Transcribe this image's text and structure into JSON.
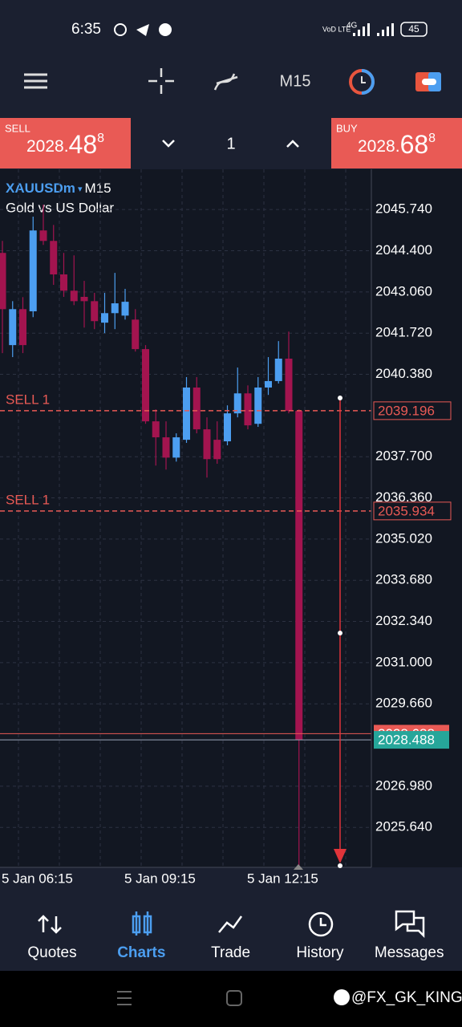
{
  "status_bar": {
    "time": "6:35",
    "network": "VoD LTE",
    "signal": "4G",
    "battery": "45"
  },
  "toolbar": {
    "timeframe": "M15"
  },
  "order_panel": {
    "sell_label": "SELL",
    "sell_price": {
      "main": "2028.",
      "big": "48",
      "sup": "8"
    },
    "volume": "1",
    "buy_label": "BUY",
    "buy_price": {
      "main": "2028.",
      "big": "68",
      "sup": "8"
    }
  },
  "chart_data": {
    "type": "candlestick",
    "symbol": "XAUUSDm",
    "timeframe": "M15",
    "description": "Gold vs US Dollar",
    "up_color": "#4c9ef0",
    "down_color": "#a3144f",
    "categories": [
      "5 Jan 06:15",
      null,
      null,
      null,
      null,
      null,
      null,
      null,
      null,
      null,
      null,
      null,
      "5 Jan 09:15",
      null,
      null,
      null,
      null,
      null,
      null,
      null,
      null,
      null,
      null,
      null,
      "5 Jan 12:15",
      null,
      null,
      null,
      null,
      null
    ],
    "open": [
      2044.33,
      2041.33,
      2042.5,
      2042.43,
      2045.06,
      2044.72,
      2043.63,
      2043.1,
      2042.9,
      2042.76,
      2042.06,
      2042.37,
      2042.29,
      2042.16,
      2041.2,
      2038.85,
      2038.33,
      2037.67,
      2038.25,
      2039.95,
      2038.59,
      2038.25,
      2038.2,
      2039.11,
      2039.76,
      2038.77,
      2039.95,
      2040.16,
      2040.89,
      2039.19
    ],
    "high": [
      2044.72,
      2042.76,
      2042.89,
      2045.51,
      2045.9,
      2045.24,
      2044.33,
      2044.25,
      2043.42,
      2043.03,
      2043.03,
      2043.68,
      2043.16,
      2042.5,
      2041.33,
      2039.24,
      2038.85,
      2038.46,
      2040.29,
      2040.29,
      2038.98,
      2038.85,
      2039.37,
      2040.6,
      2040.02,
      2040.29,
      2040.94,
      2041.46,
      2041.77,
      2039.24
    ],
    "low": [
      2041.07,
      2040.94,
      2041.07,
      2042.24,
      2044.59,
      2043.29,
      2042.9,
      2042.63,
      2041.9,
      2041.85,
      2041.72,
      2041.85,
      2042.16,
      2041.12,
      2038.77,
      2037.41,
      2037.28,
      2037.54,
      2038.15,
      2038.46,
      2037.02,
      2037.47,
      2038.07,
      2038.98,
      2038.59,
      2038.67,
      2039.71,
      2040.08,
      2039.11,
      2024.36
    ],
    "close": [
      2042.5,
      2042.5,
      2041.33,
      2045.06,
      2044.72,
      2043.63,
      2043.1,
      2042.76,
      2042.76,
      2042.11,
      2042.37,
      2042.69,
      2042.74,
      2041.2,
      2038.85,
      2038.33,
      2037.67,
      2038.33,
      2039.95,
      2038.59,
      2037.62,
      2037.62,
      2039.11,
      2039.76,
      2038.72,
      2039.95,
      2040.16,
      2040.89,
      2039.19,
      2028.49
    ],
    "ylim": [
      2024.34,
      2047.05
    ],
    "yticks": [
      {
        "value": 2045.74,
        "label": "2045.740"
      },
      {
        "value": 2044.4,
        "label": "2044.400"
      },
      {
        "value": 2043.06,
        "label": "2043.060"
      },
      {
        "value": 2041.72,
        "label": "2041.720"
      },
      {
        "value": 2040.38,
        "label": "2040.380"
      },
      {
        "value": 2037.7,
        "label": "2037.700"
      },
      {
        "value": 2036.36,
        "label": "2036.360"
      },
      {
        "value": 2035.02,
        "label": "2035.020"
      },
      {
        "value": 2033.68,
        "label": "2033.680"
      },
      {
        "value": 2032.34,
        "label": "2032.340"
      },
      {
        "value": 2031.0,
        "label": "2031.000"
      },
      {
        "value": 2029.66,
        "label": "2029.660"
      },
      {
        "value": 2026.98,
        "label": "2026.980"
      },
      {
        "value": 2025.64,
        "label": "2025.640"
      }
    ],
    "grid": true,
    "orders": [
      {
        "name": "SELL 1",
        "value": 2039.196
      },
      {
        "name": "SELL 1",
        "value": 2035.934
      }
    ],
    "ask": 2028.688,
    "bid": 2028.488
  },
  "bottom_nav": {
    "tabs": [
      "Quotes",
      "Charts",
      "Trade",
      "History",
      "Messages"
    ],
    "active": 1
  },
  "watermark": "@FX_GK_KING"
}
